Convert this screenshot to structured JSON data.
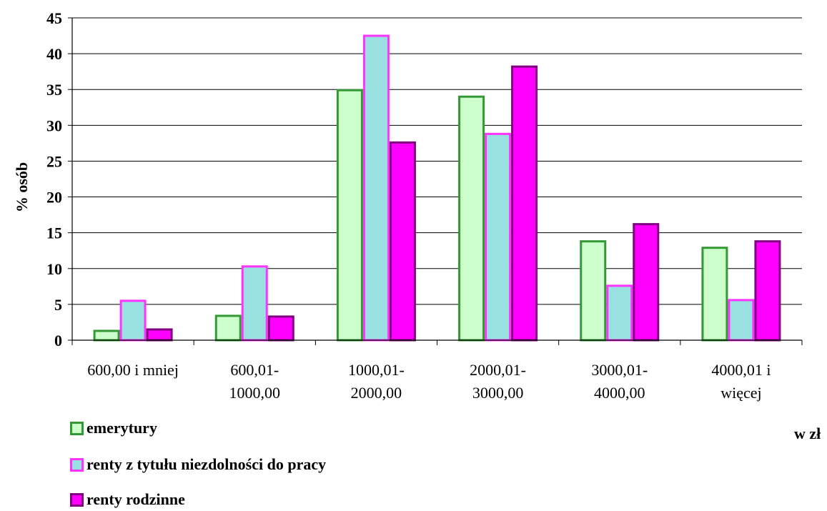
{
  "chart_data": {
    "type": "bar",
    "categories": [
      [
        "600,00 i mniej"
      ],
      [
        "600,01-",
        "1000,00"
      ],
      [
        "1000,01-",
        "2000,00"
      ],
      [
        "2000,01-",
        "3000,00"
      ],
      [
        "3000,01-",
        "4000,00"
      ],
      [
        "4000,01 i",
        "więcej"
      ]
    ],
    "series": [
      {
        "name": "emerytury",
        "values": [
          1.3,
          3.4,
          34.9,
          34.0,
          13.8,
          12.9
        ],
        "fill": "#ccffcc",
        "stroke": "#339933"
      },
      {
        "name": "renty z tytułu niezdolności do pracy",
        "values": [
          5.5,
          10.3,
          42.5,
          28.8,
          7.6,
          5.6
        ],
        "fill": "#99e0e0",
        "stroke": "#ff33ff"
      },
      {
        "name": "renty rodzinne",
        "values": [
          1.5,
          3.3,
          27.6,
          38.2,
          16.2,
          13.8
        ],
        "fill": "#ff00ff",
        "stroke": "#800080"
      }
    ],
    "ylabel": "% osób",
    "xlabel": "w zł",
    "ylim": [
      0,
      45
    ],
    "yticks": [
      0,
      5,
      10,
      15,
      20,
      25,
      30,
      35,
      40,
      45
    ],
    "grid": true,
    "legend_position": "bottom-left"
  }
}
